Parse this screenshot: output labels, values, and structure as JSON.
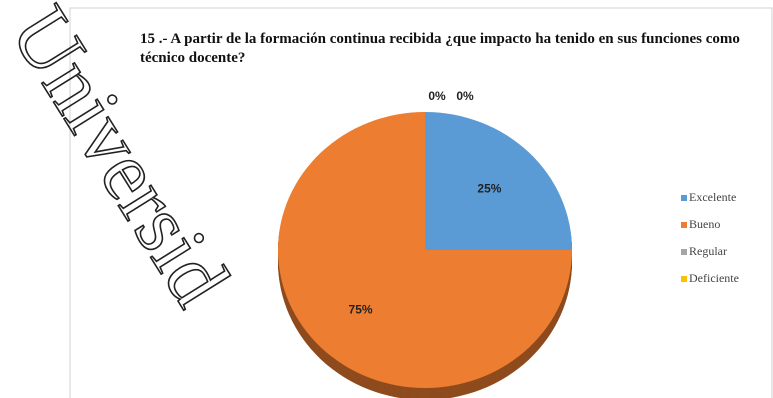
{
  "watermark": "Universid",
  "chart_data": {
    "type": "pie",
    "title": "15 .- A partir de la formación continua recibida ¿que impacto ha tenido en sus funciones como técnico docente?",
    "categories": [
      "Excelente",
      "Bueno",
      "Regular",
      "Deficiente"
    ],
    "values": [
      25,
      75,
      0,
      0
    ],
    "value_labels": [
      "25%",
      "75%",
      "0%",
      "0%"
    ],
    "colors": [
      "#5b9bd5",
      "#ed7d31",
      "#a5a5a5",
      "#ffc000"
    ],
    "legend": "right"
  }
}
